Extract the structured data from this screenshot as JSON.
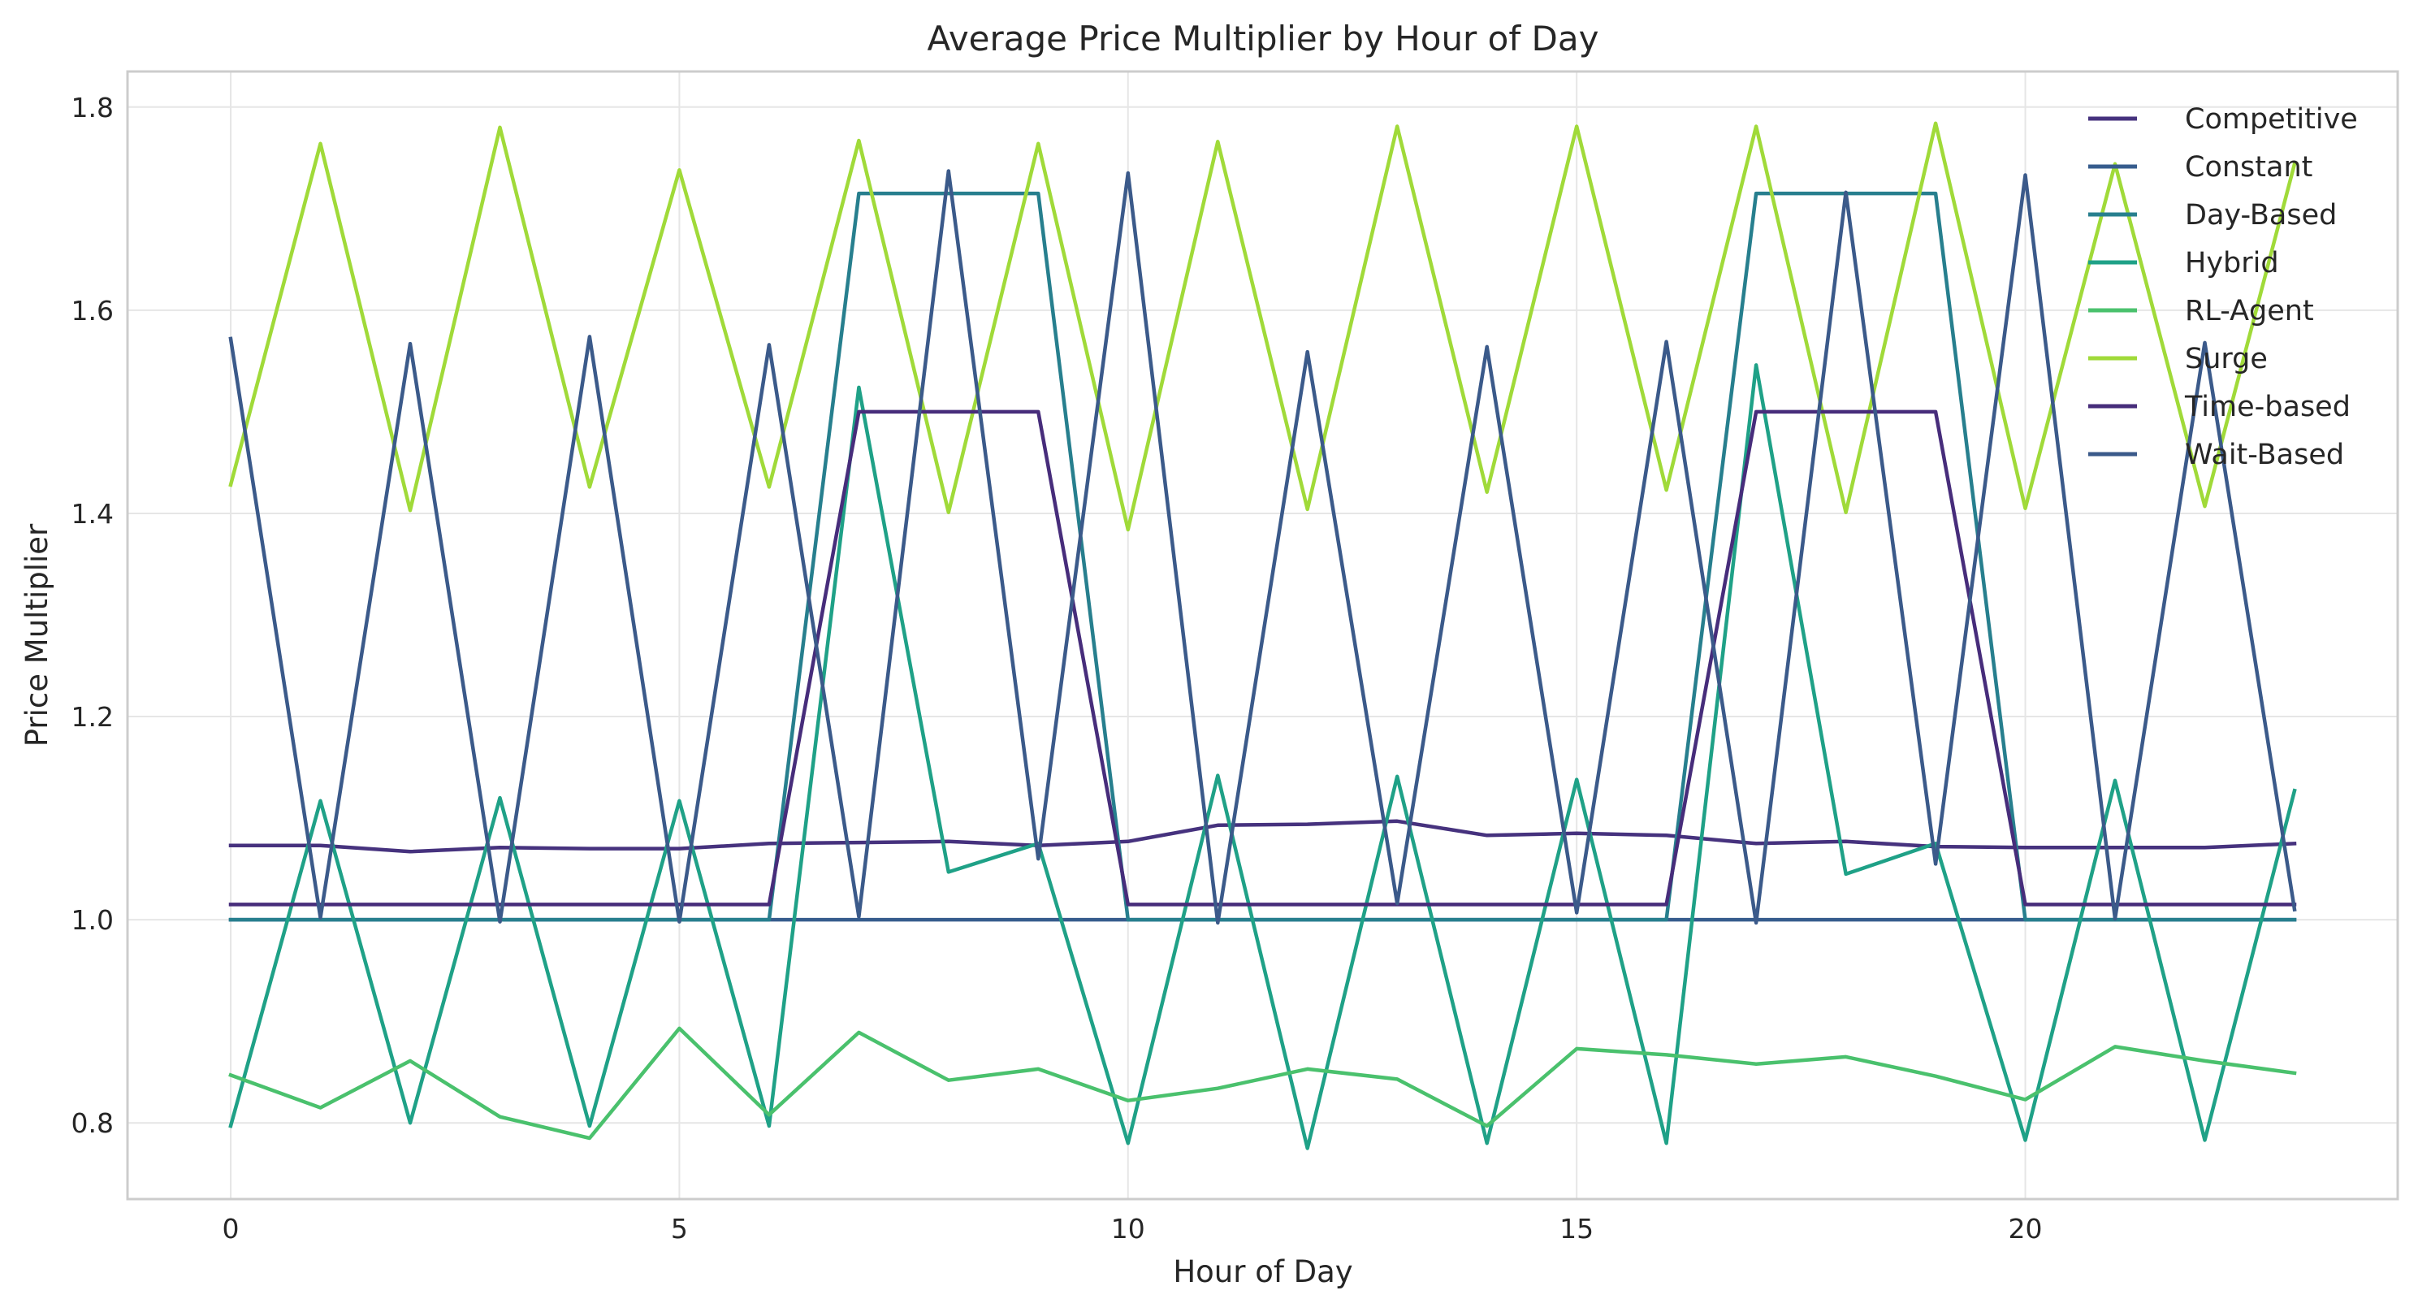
{
  "chart_data": {
    "type": "line",
    "title": "Average Price Multiplier by Hour of Day",
    "xlabel": "Hour of Day",
    "ylabel": "Price Multiplier",
    "x": [
      0,
      1,
      2,
      3,
      4,
      5,
      6,
      7,
      8,
      9,
      10,
      11,
      12,
      13,
      14,
      15,
      16,
      17,
      18,
      19,
      20,
      21,
      22,
      23
    ],
    "xlim": [
      -1.15,
      24.15
    ],
    "ylim": [
      0.725,
      1.835
    ],
    "xticks": [
      0,
      5,
      10,
      15,
      20
    ],
    "yticks": [
      0.8,
      1.0,
      1.2,
      1.4,
      1.6,
      1.8
    ],
    "xtick_labels": [
      "0",
      "5",
      "10",
      "15",
      "20"
    ],
    "ytick_labels": [
      "0.8",
      "1.0",
      "1.2",
      "1.4",
      "1.6",
      "1.8"
    ],
    "grid": true,
    "legend_position": "top-right",
    "series": [
      {
        "name": "Competitive",
        "color": "#46327e",
        "values": [
          1.073,
          1.073,
          1.067,
          1.071,
          1.07,
          1.07,
          1.075,
          1.076,
          1.077,
          1.073,
          1.077,
          1.093,
          1.094,
          1.097,
          1.083,
          1.085,
          1.083,
          1.075,
          1.077,
          1.072,
          1.071,
          1.071,
          1.071,
          1.075
        ]
      },
      {
        "name": "Constant",
        "color": "#365c8d",
        "values": [
          1.0,
          1.0,
          1.0,
          1.0,
          1.0,
          1.0,
          1.0,
          1.0,
          1.0,
          1.0,
          1.0,
          1.0,
          1.0,
          1.0,
          1.0,
          1.0,
          1.0,
          1.0,
          1.0,
          1.0,
          1.0,
          1.0,
          1.0,
          1.0
        ]
      },
      {
        "name": "Day-Based",
        "color": "#277f8e",
        "values": [
          1.0,
          1.0,
          1.0,
          1.0,
          1.0,
          1.0,
          1.0,
          1.715,
          1.715,
          1.715,
          1.0,
          1.0,
          1.0,
          1.0,
          1.0,
          1.0,
          1.0,
          1.715,
          1.715,
          1.715,
          1.0,
          1.0,
          1.0,
          1.0
        ]
      },
      {
        "name": "Hybrid",
        "color": "#1fa187",
        "values": [
          0.797,
          1.117,
          0.8,
          1.12,
          0.797,
          1.117,
          0.797,
          1.524,
          1.047,
          1.075,
          0.78,
          1.142,
          0.775,
          1.141,
          0.78,
          1.138,
          0.78,
          1.546,
          1.045,
          1.075,
          0.783,
          1.137,
          0.783,
          1.127
        ]
      },
      {
        "name": "RL-Agent",
        "color": "#4ac16d",
        "values": [
          0.847,
          0.815,
          0.861,
          0.806,
          0.785,
          0.893,
          0.808,
          0.889,
          0.842,
          0.853,
          0.822,
          0.834,
          0.853,
          0.843,
          0.797,
          0.873,
          0.867,
          0.858,
          0.865,
          0.846,
          0.823,
          0.875,
          0.861,
          0.849
        ]
      },
      {
        "name": "Surge",
        "color": "#a0da39",
        "values": [
          1.428,
          1.764,
          1.403,
          1.78,
          1.426,
          1.738,
          1.426,
          1.767,
          1.401,
          1.764,
          1.384,
          1.766,
          1.404,
          1.781,
          1.421,
          1.781,
          1.423,
          1.781,
          1.401,
          1.784,
          1.405,
          1.744,
          1.407,
          1.744
        ]
      },
      {
        "name": "Time-based",
        "color": "#472d7b",
        "values": [
          1.015,
          1.015,
          1.015,
          1.015,
          1.015,
          1.015,
          1.015,
          1.5,
          1.5,
          1.5,
          1.015,
          1.015,
          1.015,
          1.015,
          1.015,
          1.015,
          1.015,
          1.5,
          1.5,
          1.5,
          1.015,
          1.015,
          1.015,
          1.015
        ]
      },
      {
        "name": "Wait-Based",
        "color": "#3b5a8a",
        "values": [
          1.572,
          1.002,
          1.567,
          0.998,
          1.574,
          0.998,
          1.566,
          1.003,
          1.737,
          1.06,
          1.735,
          0.997,
          1.559,
          1.016,
          1.564,
          1.007,
          1.569,
          0.997,
          1.716,
          1.055,
          1.733,
          1.001,
          1.568,
          1.01
        ]
      }
    ]
  }
}
